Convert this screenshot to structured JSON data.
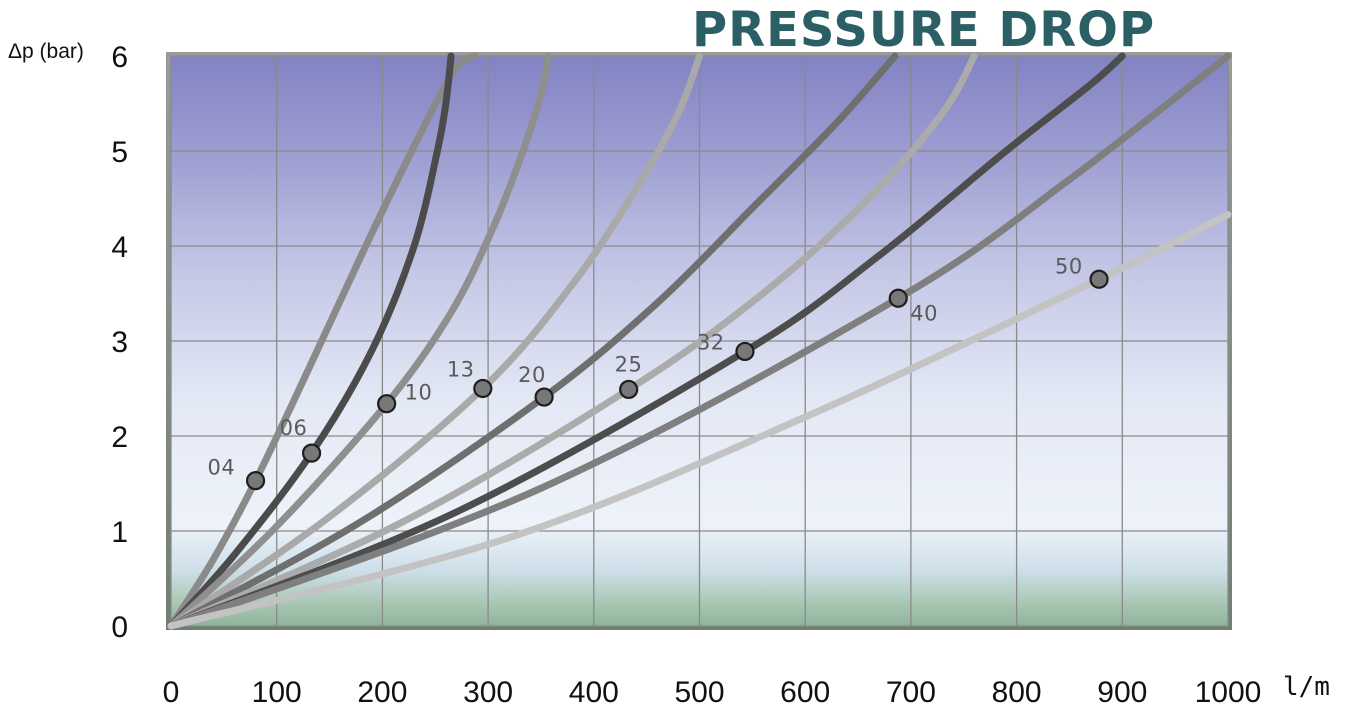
{
  "chart_data": {
    "type": "line",
    "title": "PRESSURE DROP",
    "ylabel": "Δp (bar)",
    "xlabel": "l/m",
    "xlim": [
      0,
      1000
    ],
    "ylim": [
      0,
      6
    ],
    "x_ticks": [
      "0",
      "100",
      "200",
      "300",
      "400",
      "500",
      "600",
      "700",
      "800",
      "900",
      "1000"
    ],
    "y_ticks": [
      "0",
      "1",
      "2",
      "3",
      "4",
      "5",
      "6"
    ],
    "grid": true,
    "series": [
      {
        "name": "04",
        "color": "#8a8a8a",
        "point": [
          80,
          1.53
        ],
        "curve": [
          [
            0,
            0
          ],
          [
            40,
            0.7
          ],
          [
            80,
            1.53
          ],
          [
            130,
            2.7
          ],
          [
            180,
            3.9
          ],
          [
            230,
            5.05
          ],
          [
            268,
            5.85
          ],
          [
            288,
            6.0
          ]
        ]
      },
      {
        "name": "06",
        "color": "#4b4b4b",
        "point": [
          133,
          1.82
        ],
        "curve": [
          [
            0,
            0
          ],
          [
            60,
            0.75
          ],
          [
            133,
            1.82
          ],
          [
            190,
            2.9
          ],
          [
            230,
            4.0
          ],
          [
            252,
            5.0
          ],
          [
            260,
            5.5
          ],
          [
            265,
            6.0
          ]
        ]
      },
      {
        "name": "10",
        "color": "#8f8f8f",
        "point": [
          204,
          2.34
        ],
        "curve": [
          [
            0,
            0
          ],
          [
            100,
            1.05
          ],
          [
            204,
            2.34
          ],
          [
            265,
            3.3
          ],
          [
            305,
            4.2
          ],
          [
            333,
            5.0
          ],
          [
            350,
            5.6
          ],
          [
            357,
            6.0
          ]
        ]
      },
      {
        "name": "13",
        "color": "#a9a9a9",
        "point": [
          295,
          2.5
        ],
        "curve": [
          [
            0,
            0
          ],
          [
            150,
            1.15
          ],
          [
            295,
            2.5
          ],
          [
            380,
            3.6
          ],
          [
            440,
            4.6
          ],
          [
            480,
            5.4
          ],
          [
            500,
            6.0
          ]
        ]
      },
      {
        "name": "20",
        "color": "#6f6f6f",
        "point": [
          353,
          2.41
        ],
        "curve": [
          [
            0,
            0
          ],
          [
            180,
            1.1
          ],
          [
            353,
            2.41
          ],
          [
            460,
            3.4
          ],
          [
            550,
            4.4
          ],
          [
            630,
            5.3
          ],
          [
            685,
            6.0
          ]
        ]
      },
      {
        "name": "25",
        "color": "#ababab",
        "point": [
          433,
          2.49
        ],
        "curve": [
          [
            0,
            0
          ],
          [
            220,
            1.1
          ],
          [
            433,
            2.49
          ],
          [
            560,
            3.5
          ],
          [
            660,
            4.5
          ],
          [
            730,
            5.4
          ],
          [
            760,
            6.0
          ]
        ]
      },
      {
        "name": "32",
        "color": "#4d4d4d",
        "point": [
          543,
          2.89
        ],
        "curve": [
          [
            0,
            0
          ],
          [
            270,
            1.2
          ],
          [
            543,
            2.89
          ],
          [
            670,
            3.9
          ],
          [
            790,
            5.0
          ],
          [
            870,
            5.7
          ],
          [
            900,
            6.0
          ]
        ]
      },
      {
        "name": "40",
        "color": "#7f7f7f",
        "point": [
          688,
          3.45
        ],
        "curve": [
          [
            0,
            0
          ],
          [
            350,
            1.45
          ],
          [
            688,
            3.45
          ],
          [
            850,
            4.7
          ],
          [
            1000,
            6.0
          ]
        ]
      },
      {
        "name": "50",
        "color": "#c3c3c3",
        "point": [
          878,
          3.65
        ],
        "curve": [
          [
            0,
            0
          ],
          [
            320,
            0.93
          ],
          [
            600,
            2.2
          ],
          [
            878,
            3.65
          ],
          [
            1000,
            4.33
          ]
        ]
      }
    ]
  }
}
